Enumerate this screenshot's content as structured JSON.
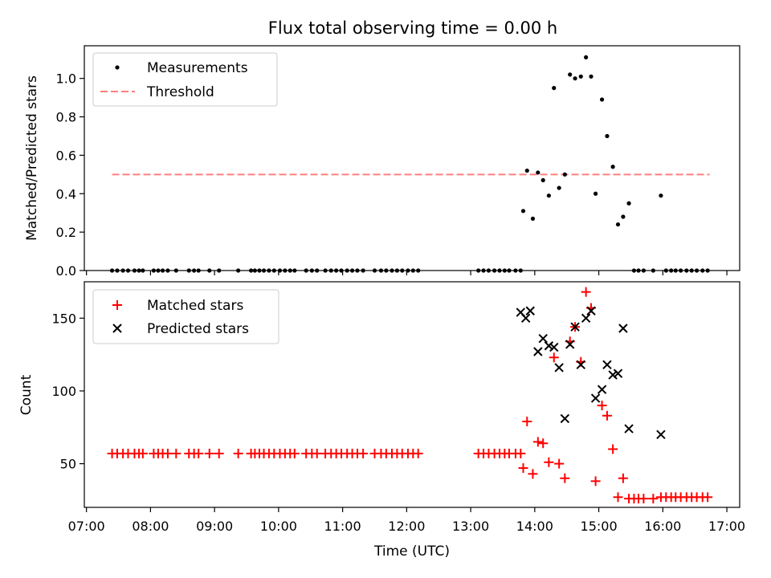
{
  "title": "Flux total observing time = 0.00 h",
  "chart_data": [
    {
      "type": "scatter",
      "name": "ratio-panel",
      "ylabel": "Matched/Predicted stars",
      "xlim": [
        6.9667,
        17.2
      ],
      "ylim": [
        0,
        1.17
      ],
      "yticks": [
        0.0,
        0.2,
        0.4,
        0.6,
        0.8,
        1.0
      ],
      "ytick_labels": [
        "0.0",
        "0.2",
        "0.4",
        "0.6",
        "0.8",
        "1.0"
      ],
      "legend": {
        "position": "top-left",
        "measurements_label": "Measurements",
        "threshold_label": "Threshold"
      },
      "threshold": {
        "value": 0.5,
        "x_range": [
          7.4,
          16.73
        ],
        "color": "#ff7f7f"
      },
      "measurements": {
        "color": "#000000",
        "x": [
          7.4,
          7.48,
          7.57,
          7.65,
          7.75,
          7.82,
          7.88,
          8.05,
          8.12,
          8.19,
          8.27,
          8.4,
          8.6,
          8.68,
          8.75,
          8.92,
          9.07,
          9.37,
          9.57,
          9.63,
          9.7,
          9.77,
          9.85,
          9.93,
          10.02,
          10.1,
          10.18,
          10.25,
          10.43,
          10.52,
          10.6,
          10.73,
          10.82,
          10.9,
          10.98,
          11.07,
          11.15,
          11.23,
          11.32,
          11.5,
          11.6,
          11.68,
          11.77,
          11.85,
          11.93,
          12.02,
          12.1,
          12.18,
          13.12,
          13.2,
          13.28,
          13.37,
          13.45,
          13.53,
          13.6,
          13.7,
          13.78,
          13.82,
          13.88,
          13.97,
          14.05,
          14.13,
          14.22,
          14.3,
          14.38,
          14.47,
          14.55,
          14.63,
          14.72,
          14.8,
          14.88,
          14.95,
          15.05,
          15.13,
          15.22,
          15.3,
          15.38,
          15.47,
          15.55,
          15.62,
          15.7,
          15.85,
          15.97,
          16.05,
          16.13,
          16.2,
          16.28,
          16.37,
          16.45,
          16.53,
          16.62,
          16.7
        ],
        "y": [
          0,
          0,
          0,
          0,
          0,
          0,
          0,
          0,
          0,
          0,
          0,
          0,
          0,
          0,
          0,
          0,
          0,
          0,
          0,
          0,
          0,
          0,
          0,
          0,
          0,
          0,
          0,
          0,
          0,
          0,
          0,
          0,
          0,
          0,
          0,
          0,
          0,
          0,
          0,
          0,
          0,
          0,
          0,
          0,
          0,
          0,
          0,
          0,
          0,
          0,
          0,
          0,
          0,
          0,
          0,
          0,
          0,
          0.31,
          0.52,
          0.27,
          0.51,
          0.47,
          0.39,
          0.95,
          0.43,
          0.5,
          1.02,
          1.0,
          1.01,
          1.11,
          1.01,
          0.4,
          0.89,
          0.7,
          0.54,
          0.24,
          0.28,
          0.35,
          0,
          0,
          0,
          0,
          0.39,
          0,
          0,
          0,
          0,
          0,
          0,
          0,
          0,
          0
        ]
      }
    },
    {
      "type": "scatter",
      "name": "count-panel",
      "xlabel": "Time (UTC)",
      "ylabel": "Count",
      "xlim": [
        6.9667,
        17.2
      ],
      "ylim": [
        20,
        175
      ],
      "xticks": [
        7,
        8,
        9,
        10,
        11,
        12,
        13,
        14,
        15,
        16,
        17
      ],
      "xtick_labels": [
        "07:00",
        "08:00",
        "09:00",
        "10:00",
        "11:00",
        "12:00",
        "13:00",
        "14:00",
        "15:00",
        "16:00",
        "17:00"
      ],
      "yticks": [
        50,
        100,
        150
      ],
      "ytick_labels": [
        "50",
        "100",
        "150"
      ],
      "legend": {
        "position": "top-left",
        "matched_label": "Matched stars",
        "predicted_label": "Predicted stars"
      },
      "matched": {
        "color": "#ff0000",
        "x": [
          7.4,
          7.48,
          7.57,
          7.65,
          7.75,
          7.82,
          7.88,
          8.05,
          8.12,
          8.19,
          8.27,
          8.4,
          8.6,
          8.68,
          8.75,
          8.92,
          9.07,
          9.37,
          9.57,
          9.63,
          9.7,
          9.77,
          9.85,
          9.93,
          10.02,
          10.1,
          10.18,
          10.25,
          10.43,
          10.52,
          10.6,
          10.73,
          10.82,
          10.9,
          10.98,
          11.07,
          11.15,
          11.23,
          11.32,
          11.5,
          11.6,
          11.68,
          11.77,
          11.85,
          11.93,
          12.02,
          12.1,
          12.18,
          13.12,
          13.2,
          13.28,
          13.37,
          13.45,
          13.53,
          13.6,
          13.7,
          13.78,
          13.82,
          13.88,
          13.97,
          14.05,
          14.13,
          14.22,
          14.3,
          14.38,
          14.47,
          14.55,
          14.63,
          14.72,
          14.8,
          14.88,
          14.95,
          15.05,
          15.13,
          15.22,
          15.3,
          15.38,
          15.47,
          15.55,
          15.62,
          15.7,
          15.85,
          15.97,
          16.05,
          16.13,
          16.2,
          16.28,
          16.37,
          16.45,
          16.53,
          16.62,
          16.7
        ],
        "y": [
          57,
          57,
          57,
          57,
          57,
          57,
          57,
          57,
          57,
          57,
          57,
          57,
          57,
          57,
          57,
          57,
          57,
          57,
          57,
          57,
          57,
          57,
          57,
          57,
          57,
          57,
          57,
          57,
          57,
          57,
          57,
          57,
          57,
          57,
          57,
          57,
          57,
          57,
          57,
          57,
          57,
          57,
          57,
          57,
          57,
          57,
          57,
          57,
          57,
          57,
          57,
          57,
          57,
          57,
          57,
          57,
          57,
          47,
          79,
          43,
          65,
          64,
          51,
          123,
          50,
          40,
          134,
          144,
          120,
          168,
          157,
          38,
          90,
          83,
          60,
          27,
          40,
          26,
          26,
          26,
          26,
          26,
          27,
          27,
          27,
          27,
          27,
          27,
          27,
          27,
          27,
          27
        ]
      },
      "predicted": {
        "color": "#000000",
        "x": [
          13.78,
          13.86,
          13.93,
          14.05,
          14.13,
          14.22,
          14.3,
          14.38,
          14.47,
          14.55,
          14.63,
          14.72,
          14.8,
          14.88,
          14.95,
          15.05,
          15.13,
          15.22,
          15.3,
          15.38,
          15.47,
          15.97
        ],
        "y": [
          154,
          150,
          155,
          127,
          136,
          131,
          130,
          116,
          81,
          132,
          144,
          118,
          150,
          155,
          95,
          101,
          118,
          111,
          112,
          143,
          74,
          70
        ]
      }
    }
  ]
}
